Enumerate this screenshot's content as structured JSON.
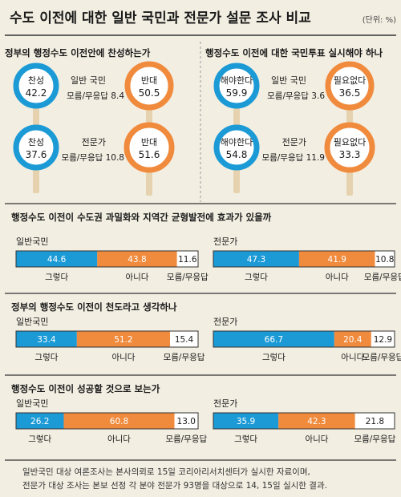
{
  "header": {
    "title": "수도 이전에 대한 일반 국민과 전문가 설문 조사 비교",
    "unit": "(단위: %)"
  },
  "colors": {
    "blue": "#1b9ad6",
    "orange": "#f08a3c",
    "background": "#f3eee2",
    "dark": "#1a1a1a",
    "stick": "#e6d2ae"
  },
  "labels": {
    "general": "일반 국민",
    "expert": "전문가",
    "bar_general": "일반국민",
    "bar_expert": "전문가",
    "undecided_prefix": "모름/무응답",
    "bar_yes": "그렇다",
    "bar_no": "아니다",
    "bar_undecided": "모름/무응답"
  },
  "chart_data": [
    {
      "type": "pie",
      "title": "정부의 행정수도 이전안에 찬성하는가",
      "series": [
        {
          "name": "일반 국민",
          "values": [
            {
              "label": "찬성",
              "value": 42.2
            },
            {
              "label": "반대",
              "value": 50.5
            },
            {
              "label": "모름/무응답",
              "value": 8.4
            }
          ]
        },
        {
          "name": "전문가",
          "values": [
            {
              "label": "찬성",
              "value": 37.6
            },
            {
              "label": "반대",
              "value": 51.6
            },
            {
              "label": "모름/무응답",
              "value": 10.8
            }
          ]
        }
      ]
    },
    {
      "type": "pie",
      "title": "행정수도 이전에 대한 국민투표 실시해야 하나",
      "series": [
        {
          "name": "일반 국민",
          "values": [
            {
              "label": "해야한다",
              "value": 59.9
            },
            {
              "label": "필요없다",
              "value": 36.5
            },
            {
              "label": "모름/무응답",
              "value": 3.6
            }
          ]
        },
        {
          "name": "전문가",
          "values": [
            {
              "label": "해야한다",
              "value": 54.8
            },
            {
              "label": "필요없다",
              "value": 33.3
            },
            {
              "label": "모름/무응답",
              "value": 11.9
            }
          ]
        }
      ]
    },
    {
      "type": "bar",
      "title": "행정수도 이전이 수도권 과밀화와 지역간 균형발전에 효과가 있을까",
      "categories": [
        "그렇다",
        "아니다",
        "모름/무응답"
      ],
      "series": [
        {
          "name": "일반국민",
          "values": [
            44.6,
            43.8,
            11.6
          ]
        },
        {
          "name": "전문가",
          "values": [
            47.3,
            41.9,
            10.8
          ]
        }
      ]
    },
    {
      "type": "bar",
      "title": "정부의 행정수도 이전이 천도라고 생각하나",
      "categories": [
        "그렇다",
        "아니다",
        "모름/무응답"
      ],
      "series": [
        {
          "name": "일반국민",
          "values": [
            33.4,
            51.2,
            15.4
          ]
        },
        {
          "name": "전문가",
          "values": [
            66.7,
            20.4,
            12.9
          ]
        }
      ]
    },
    {
      "type": "bar",
      "title": "행정수도 이전이 성공할 것으로 보는가",
      "categories": [
        "그렇다",
        "아니다",
        "모름/무응답"
      ],
      "series": [
        {
          "name": "일반국민",
          "values": [
            26.2,
            60.8,
            13.0
          ]
        },
        {
          "name": "전문가",
          "values": [
            35.9,
            42.3,
            21.8
          ]
        }
      ]
    }
  ],
  "footnote": [
    "일반국민 대상 여론조사는 본사의뢰로 15일 코리아리서치센터가 실시한 자료이며,",
    "전문가 대상 조사는 본보 선정 각 분야 전문가 93명을 대상으로 14, 15일 실시한 결과."
  ]
}
